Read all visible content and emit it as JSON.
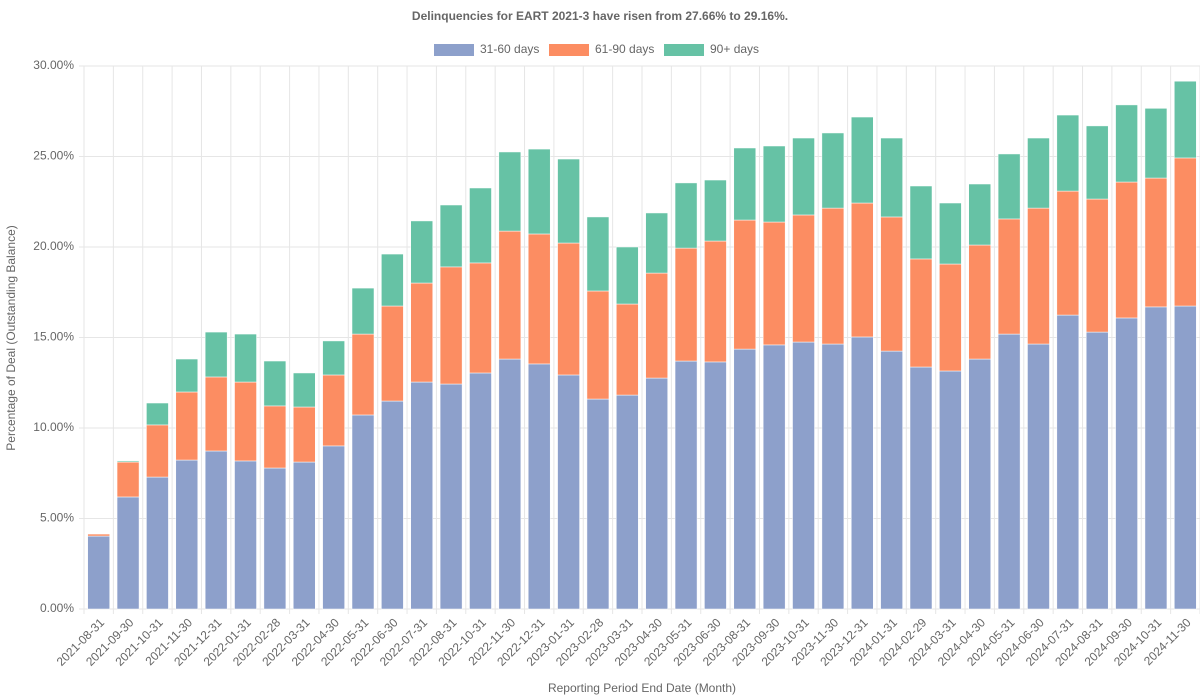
{
  "chart_data": {
    "type": "stacked-bar",
    "title": "Delinquencies for EART 2021-3 have risen from 27.66% to 29.16%.",
    "x_label": "Reporting Period End Date (Month)",
    "y_label": "Percentage of Deal (Outstanding Balance)",
    "categories": [
      "2021-08-31",
      "2021-09-30",
      "2021-10-31",
      "2021-11-30",
      "2021-12-31",
      "2022-01-31",
      "2022-02-28",
      "2022-03-31",
      "2022-04-30",
      "2022-05-31",
      "2022-06-30",
      "2022-07-31",
      "2022-08-31",
      "2022-10-31",
      "2022-11-30",
      "2022-12-31",
      "2023-01-31",
      "2023-02-28",
      "2023-03-31",
      "2023-04-30",
      "2023-05-31",
      "2023-06-30",
      "2023-08-31",
      "2023-09-30",
      "2023-10-31",
      "2023-11-30",
      "2023-12-31",
      "2024-01-31",
      "2024-02-29",
      "2024-03-31",
      "2024-04-30",
      "2024-05-31",
      "2024-06-30",
      "2024-07-31",
      "2024-08-31",
      "2024-09-30",
      "2024-10-31",
      "2024-11-30"
    ],
    "series": [
      {
        "name": "31-60 days",
        "color": "#8da0cb",
        "values": [
          4.03,
          6.19,
          7.29,
          8.23,
          8.73,
          8.18,
          7.79,
          8.12,
          9.01,
          10.72,
          11.49,
          12.54,
          12.43,
          13.04,
          13.81,
          13.54,
          12.93,
          11.6,
          11.82,
          12.76,
          13.7,
          13.65,
          14.36,
          14.59,
          14.75,
          14.64,
          15.03,
          14.25,
          13.37,
          13.15,
          13.81,
          15.19,
          14.64,
          16.24,
          15.3,
          16.08,
          16.69,
          16.74
        ]
      },
      {
        "name": "61-90 days",
        "color": "#fc8d62",
        "values": [
          0.11,
          1.93,
          2.88,
          3.76,
          4.09,
          4.36,
          3.43,
          3.04,
          3.92,
          4.47,
          5.25,
          5.47,
          6.47,
          6.08,
          7.07,
          7.18,
          7.29,
          5.97,
          5.03,
          5.8,
          6.24,
          6.68,
          7.13,
          6.79,
          7.02,
          7.51,
          7.4,
          7.41,
          5.97,
          5.91,
          6.3,
          6.36,
          7.51,
          6.85,
          7.35,
          7.51,
          7.12,
          8.18
        ]
      },
      {
        "name": "90+ days",
        "color": "#66c2a5",
        "values": [
          0,
          0.06,
          1.21,
          1.82,
          2.48,
          2.65,
          2.48,
          1.88,
          1.88,
          2.54,
          2.87,
          3.43,
          3.42,
          4.14,
          4.37,
          4.69,
          4.64,
          4.09,
          3.15,
          3.32,
          3.6,
          3.37,
          3.98,
          4.2,
          4.25,
          4.15,
          4.75,
          4.36,
          4.03,
          3.37,
          3.37,
          3.59,
          3.87,
          4.2,
          4.04,
          4.26,
          3.85,
          4.24
        ]
      }
    ],
    "ylim": [
      0,
      30
    ],
    "yticks": [
      {
        "value": 0,
        "label": "0.00%"
      },
      {
        "value": 5,
        "label": "5.00%"
      },
      {
        "value": 10,
        "label": "10.00%"
      },
      {
        "value": 15,
        "label": "15.00%"
      },
      {
        "value": 20,
        "label": "20.00%"
      },
      {
        "value": 25,
        "label": "25.00%"
      },
      {
        "value": 30,
        "label": "30.00%"
      }
    ],
    "grid": true,
    "legend": "top"
  }
}
